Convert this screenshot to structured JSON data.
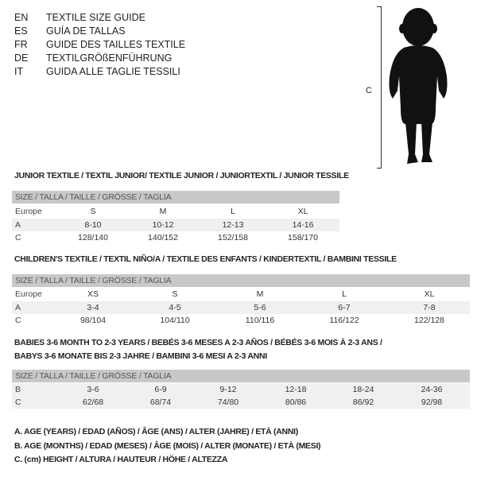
{
  "header": [
    {
      "code": "EN",
      "text": "TEXTILE SIZE GUIDE"
    },
    {
      "code": "ES",
      "text": "GUÍA DE TALLAS"
    },
    {
      "code": "FR",
      "text": "GUIDE DES TAILLES TEXTILE"
    },
    {
      "code": "DE",
      "text": "TEXTILGRÖßENFÜHRUNG"
    },
    {
      "code": "IT",
      "text": "GUIDA ALLE TAGLIE TESSILI"
    }
  ],
  "figure": {
    "label": "C",
    "icon": "child-silhouette-icon"
  },
  "tables": [
    {
      "title": "JUNIOR TEXTILE / TEXTIL JUNIOR/ TEXTILE JUNIOR / JUNIORTEXTIL / JUNIOR TESSILE",
      "header": "SIZE / TALLA / TAILLE / GRÖSSE / TAGLIA",
      "rows": [
        {
          "label": "Europe",
          "cells": [
            "S",
            "M",
            "L",
            "XL"
          ]
        },
        {
          "label": "A",
          "cells": [
            "8-10",
            "10-12",
            "12-13",
            "14-16"
          ]
        },
        {
          "label": "C",
          "cells": [
            "128/140",
            "140/152",
            "152/158",
            "158/170"
          ]
        }
      ]
    },
    {
      "title": "CHILDREN'S TEXTILE / TEXTIL NIÑO/A / TEXTILE DES ENFANTS / KINDERTEXTIL / BAMBINI TESSILE",
      "header": "SIZE / TALLA / TAILLE / GRÖSSE / TAGLIA",
      "rows": [
        {
          "label": "Europe",
          "cells": [
            "XS",
            "S",
            "M",
            "L",
            "XL"
          ]
        },
        {
          "label": "A",
          "cells": [
            "3-4",
            "4-5",
            "5-6",
            "6-7",
            "7-8"
          ]
        },
        {
          "label": "C",
          "cells": [
            "98/104",
            "104/110",
            "110/116",
            "116/122",
            "122/128"
          ]
        }
      ]
    },
    {
      "title": "BABIES 3-6 MONTH TO 2-3 YEARS / BEBÉS 3-6 MESES A 2-3 AÑOS / BÉBÉS 3-6 MOIS À 2-3 ANS /",
      "title2": "BABYS 3-6 MONATE BIS 2-3 JAHRE / BAMBINI 3-6 MESI A 2-3 ANNI",
      "header": "SIZE / TALLA / TAILLE / GRÖSSE / TAGLIA",
      "rows": [
        {
          "label": "B",
          "cells": [
            "3-6",
            "6-9",
            "9-12",
            "12-18",
            "18-24",
            "24-36"
          ]
        },
        {
          "label": "C",
          "cells": [
            "62/68",
            "68/74",
            "74/80",
            "80/86",
            "86/92",
            "92/98"
          ]
        }
      ]
    }
  ],
  "legend": [
    "A. AGE (YEARS) / EDAD (AÑOS) / ÂGE (ANS) / ALTER (JAHRE) / ETÀ (ANNI)",
    "B. AGE (MONTHS) / EDAD (MESES) / ÂGE (MOIS) / ALTER (MONATE) / ETÀ (MESI)",
    "C. (cm) HEIGHT / ALTURA / HAUTEUR / HÖHE / ALTEZZA"
  ]
}
